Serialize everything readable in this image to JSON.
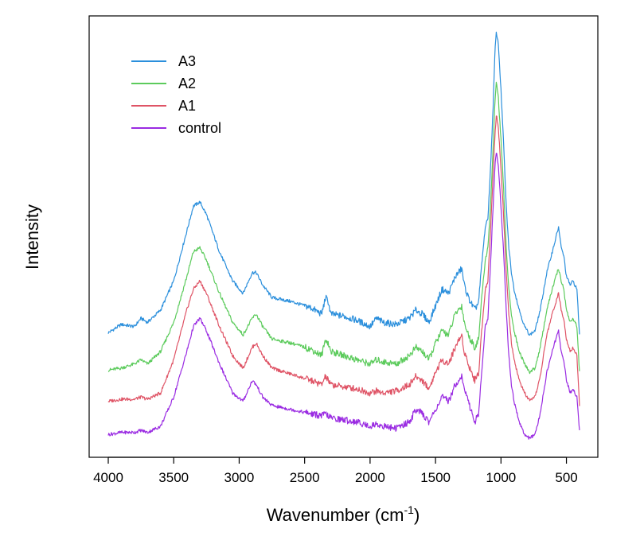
{
  "chart_data": {
    "type": "line",
    "title": "",
    "xlabel": "Wavenumber (cm",
    "xlabel_superscript": "-1",
    "xlabel_suffix": ")",
    "ylabel": "Intensity",
    "x_reversed": true,
    "xlim": [
      4000,
      400
    ],
    "ylim": [
      0,
      100
    ],
    "x_ticks": [
      4000,
      3500,
      3000,
      2500,
      2000,
      1500,
      1000,
      500
    ],
    "x_tick_labels": [
      "4000",
      "3500",
      "3000",
      "2500",
      "2000",
      "1500",
      "1000",
      "500"
    ],
    "y_ticks_shown": false,
    "grid": false,
    "legend_position": "top-left",
    "series": [
      {
        "name": "A3",
        "color": "#2b8fdc",
        "points": [
          [
            4000,
            27.5
          ],
          [
            3900,
            29.5
          ],
          [
            3800,
            29
          ],
          [
            3750,
            31
          ],
          [
            3700,
            30
          ],
          [
            3600,
            33
          ],
          [
            3500,
            40
          ],
          [
            3400,
            52
          ],
          [
            3350,
            58
          ],
          [
            3300,
            59
          ],
          [
            3250,
            56
          ],
          [
            3150,
            47
          ],
          [
            3050,
            40
          ],
          [
            2970,
            37
          ],
          [
            2900,
            42
          ],
          [
            2870,
            42
          ],
          [
            2820,
            39
          ],
          [
            2750,
            36
          ],
          [
            2600,
            35
          ],
          [
            2450,
            33.5
          ],
          [
            2370,
            32
          ],
          [
            2340,
            36
          ],
          [
            2320,
            35
          ],
          [
            2300,
            32
          ],
          [
            2200,
            31.5
          ],
          [
            2100,
            30.5
          ],
          [
            2000,
            29
          ],
          [
            1950,
            31
          ],
          [
            1900,
            30
          ],
          [
            1800,
            29.5
          ],
          [
            1700,
            31
          ],
          [
            1650,
            33
          ],
          [
            1600,
            32
          ],
          [
            1550,
            30
          ],
          [
            1500,
            34
          ],
          [
            1450,
            38
          ],
          [
            1400,
            37
          ],
          [
            1350,
            41
          ],
          [
            1300,
            43
          ],
          [
            1280,
            39
          ],
          [
            1250,
            36
          ],
          [
            1200,
            33
          ],
          [
            1170,
            35
          ],
          [
            1150,
            43
          ],
          [
            1120,
            53
          ],
          [
            1100,
            55
          ],
          [
            1080,
            67
          ],
          [
            1060,
            82
          ],
          [
            1045,
            96
          ],
          [
            1035,
            100
          ],
          [
            1020,
            97
          ],
          [
            1000,
            86
          ],
          [
            980,
            73
          ],
          [
            960,
            58
          ],
          [
            940,
            48
          ],
          [
            920,
            42
          ],
          [
            900,
            38
          ],
          [
            860,
            33
          ],
          [
            820,
            29
          ],
          [
            780,
            27
          ],
          [
            740,
            28
          ],
          [
            700,
            33
          ],
          [
            650,
            42
          ],
          [
            600,
            48
          ],
          [
            560,
            53
          ],
          [
            540,
            48
          ],
          [
            520,
            46
          ],
          [
            500,
            41
          ],
          [
            470,
            39
          ],
          [
            450,
            40
          ],
          [
            420,
            38
          ],
          [
            400,
            27
          ]
        ]
      },
      {
        "name": "A2",
        "color": "#5ccb5c",
        "points": [
          [
            4000,
            18.5
          ],
          [
            3900,
            19
          ],
          [
            3800,
            20
          ],
          [
            3750,
            21
          ],
          [
            3700,
            20
          ],
          [
            3600,
            23
          ],
          [
            3500,
            30
          ],
          [
            3400,
            41
          ],
          [
            3350,
            47
          ],
          [
            3300,
            48
          ],
          [
            3250,
            45
          ],
          [
            3150,
            37
          ],
          [
            3050,
            30
          ],
          [
            2970,
            27
          ],
          [
            2900,
            31
          ],
          [
            2870,
            32
          ],
          [
            2820,
            29
          ],
          [
            2750,
            26
          ],
          [
            2600,
            25
          ],
          [
            2450,
            23.5
          ],
          [
            2370,
            22
          ],
          [
            2340,
            26
          ],
          [
            2320,
            25
          ],
          [
            2300,
            23
          ],
          [
            2200,
            22
          ],
          [
            2100,
            21
          ],
          [
            2000,
            20
          ],
          [
            1950,
            21
          ],
          [
            1900,
            20.5
          ],
          [
            1800,
            20
          ],
          [
            1700,
            22
          ],
          [
            1650,
            24
          ],
          [
            1600,
            23
          ],
          [
            1550,
            21
          ],
          [
            1500,
            25
          ],
          [
            1450,
            28
          ],
          [
            1400,
            27
          ],
          [
            1350,
            32
          ],
          [
            1300,
            34
          ],
          [
            1280,
            30
          ],
          [
            1250,
            27
          ],
          [
            1200,
            24
          ],
          [
            1170,
            26
          ],
          [
            1150,
            35
          ],
          [
            1120,
            45
          ],
          [
            1100,
            48
          ],
          [
            1080,
            58
          ],
          [
            1060,
            72
          ],
          [
            1045,
            84
          ],
          [
            1035,
            88
          ],
          [
            1020,
            84
          ],
          [
            1000,
            74
          ],
          [
            980,
            62
          ],
          [
            960,
            48
          ],
          [
            940,
            38
          ],
          [
            920,
            32
          ],
          [
            900,
            28
          ],
          [
            860,
            23
          ],
          [
            820,
            20
          ],
          [
            780,
            18
          ],
          [
            740,
            19
          ],
          [
            700,
            24
          ],
          [
            650,
            33
          ],
          [
            600,
            39
          ],
          [
            560,
            43
          ],
          [
            540,
            40
          ],
          [
            520,
            38
          ],
          [
            500,
            33
          ],
          [
            470,
            30
          ],
          [
            450,
            31
          ],
          [
            420,
            29
          ],
          [
            400,
            18
          ]
        ]
      },
      {
        "name": "A1",
        "color": "#df5466",
        "points": [
          [
            4000,
            11
          ],
          [
            3900,
            11.5
          ],
          [
            3800,
            11.5
          ],
          [
            3750,
            12
          ],
          [
            3700,
            11.5
          ],
          [
            3600,
            13
          ],
          [
            3500,
            21
          ],
          [
            3400,
            33
          ],
          [
            3350,
            38
          ],
          [
            3300,
            40
          ],
          [
            3250,
            37
          ],
          [
            3150,
            29
          ],
          [
            3050,
            22
          ],
          [
            2970,
            19
          ],
          [
            2900,
            24
          ],
          [
            2870,
            25
          ],
          [
            2820,
            22
          ],
          [
            2750,
            19
          ],
          [
            2600,
            17.5
          ],
          [
            2450,
            16
          ],
          [
            2370,
            15
          ],
          [
            2340,
            17
          ],
          [
            2320,
            16
          ],
          [
            2300,
            15
          ],
          [
            2200,
            14.5
          ],
          [
            2100,
            14
          ],
          [
            2000,
            13
          ],
          [
            1950,
            13.5
          ],
          [
            1900,
            13
          ],
          [
            1800,
            13.5
          ],
          [
            1700,
            15
          ],
          [
            1650,
            17
          ],
          [
            1600,
            16
          ],
          [
            1550,
            14
          ],
          [
            1500,
            18
          ],
          [
            1450,
            21
          ],
          [
            1400,
            20
          ],
          [
            1350,
            24
          ],
          [
            1300,
            27
          ],
          [
            1280,
            23
          ],
          [
            1250,
            20
          ],
          [
            1200,
            16
          ],
          [
            1170,
            18
          ],
          [
            1150,
            27
          ],
          [
            1120,
            38
          ],
          [
            1100,
            40
          ],
          [
            1080,
            52
          ],
          [
            1060,
            66
          ],
          [
            1045,
            76
          ],
          [
            1035,
            80
          ],
          [
            1020,
            77
          ],
          [
            1000,
            67
          ],
          [
            980,
            56
          ],
          [
            960,
            42
          ],
          [
            940,
            32
          ],
          [
            920,
            25
          ],
          [
            900,
            21
          ],
          [
            860,
            16
          ],
          [
            820,
            13
          ],
          [
            780,
            11
          ],
          [
            740,
            12
          ],
          [
            700,
            17
          ],
          [
            650,
            27
          ],
          [
            600,
            33
          ],
          [
            560,
            37
          ],
          [
            540,
            33
          ],
          [
            520,
            31
          ],
          [
            500,
            26
          ],
          [
            470,
            23
          ],
          [
            450,
            24
          ],
          [
            420,
            22
          ],
          [
            400,
            10
          ]
        ]
      },
      {
        "name": "control",
        "color": "#9a2be2",
        "points": [
          [
            4000,
            3
          ],
          [
            3900,
            3.5
          ],
          [
            3800,
            3.5
          ],
          [
            3750,
            4
          ],
          [
            3700,
            3.5
          ],
          [
            3600,
            5
          ],
          [
            3500,
            12
          ],
          [
            3400,
            23
          ],
          [
            3350,
            29
          ],
          [
            3300,
            31
          ],
          [
            3250,
            28
          ],
          [
            3150,
            20
          ],
          [
            3050,
            13
          ],
          [
            2970,
            11
          ],
          [
            2900,
            16
          ],
          [
            2870,
            15
          ],
          [
            2820,
            12
          ],
          [
            2750,
            10
          ],
          [
            2600,
            9
          ],
          [
            2450,
            8
          ],
          [
            2370,
            7.5
          ],
          [
            2340,
            8
          ],
          [
            2320,
            7.5
          ],
          [
            2300,
            7
          ],
          [
            2200,
            6.5
          ],
          [
            2100,
            6
          ],
          [
            2000,
            5
          ],
          [
            1950,
            5.5
          ],
          [
            1900,
            5
          ],
          [
            1800,
            4.5
          ],
          [
            1700,
            6
          ],
          [
            1650,
            9
          ],
          [
            1600,
            8
          ],
          [
            1550,
            6
          ],
          [
            1500,
            9
          ],
          [
            1450,
            12
          ],
          [
            1400,
            11
          ],
          [
            1350,
            15
          ],
          [
            1300,
            17
          ],
          [
            1280,
            14
          ],
          [
            1250,
            11
          ],
          [
            1200,
            6
          ],
          [
            1170,
            8
          ],
          [
            1150,
            17
          ],
          [
            1120,
            29
          ],
          [
            1100,
            31
          ],
          [
            1080,
            44
          ],
          [
            1060,
            58
          ],
          [
            1045,
            68
          ],
          [
            1035,
            71
          ],
          [
            1020,
            68
          ],
          [
            1000,
            58
          ],
          [
            980,
            47
          ],
          [
            960,
            33
          ],
          [
            940,
            22
          ],
          [
            920,
            15
          ],
          [
            900,
            11
          ],
          [
            860,
            6
          ],
          [
            820,
            3
          ],
          [
            780,
            2
          ],
          [
            740,
            3
          ],
          [
            700,
            8
          ],
          [
            650,
            18
          ],
          [
            600,
            24
          ],
          [
            560,
            28
          ],
          [
            540,
            23
          ],
          [
            520,
            21
          ],
          [
            500,
            16
          ],
          [
            470,
            13
          ],
          [
            450,
            14
          ],
          [
            420,
            12
          ],
          [
            400,
            4
          ]
        ]
      }
    ],
    "legend_order": [
      "A3",
      "A2",
      "A1",
      "control"
    ]
  }
}
